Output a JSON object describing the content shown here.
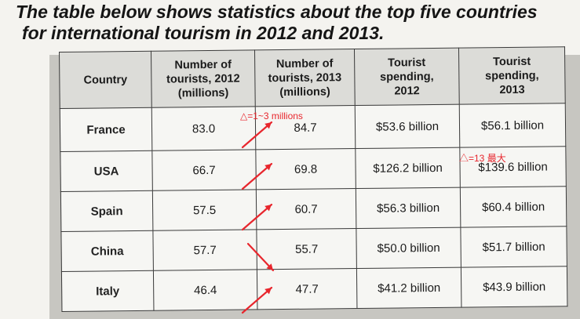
{
  "title": {
    "line1": "The table below shows statistics about the top five countries",
    "line2": "for international tourism in 2012 and 2013."
  },
  "table": {
    "headers": {
      "country": [
        "Country"
      ],
      "tourists_2012": [
        "Number of",
        "tourists, 2012",
        "(millions)"
      ],
      "tourists_2013": [
        "Number of",
        "tourists, 2013",
        "(millions)"
      ],
      "spending_2012": [
        "Tourist",
        "spending,",
        "2012"
      ],
      "spending_2013": [
        "Tourist",
        "spending,",
        "2013"
      ]
    },
    "rows": [
      {
        "country": "France",
        "tourists_2012": "83.0",
        "tourists_2013": "84.7",
        "spending_2012": "$53.6 billion",
        "spending_2013": "$56.1 billion"
      },
      {
        "country": "USA",
        "tourists_2012": "66.7",
        "tourists_2013": "69.8",
        "spending_2012": "$126.2 billion",
        "spending_2013": "$139.6 billion"
      },
      {
        "country": "Spain",
        "tourists_2012": "57.5",
        "tourists_2013": "60.7",
        "spending_2012": "$56.3 billion",
        "spending_2013": "$60.4 billion"
      },
      {
        "country": "China",
        "tourists_2012": "57.7",
        "tourists_2013": "55.7",
        "spending_2012": "$50.0 billion",
        "spending_2013": "$51.7 billion"
      },
      {
        "country": "Italy",
        "tourists_2012": "46.4",
        "tourists_2013": "47.7",
        "spending_2012": "$41.2 billion",
        "spending_2013": "$43.9 billion"
      }
    ]
  },
  "annotations": {
    "tourists_change": "△=1~3 millions",
    "spending_note": "△=13 最大",
    "color": "#e8262d",
    "trend_arrows": [
      "up",
      "up",
      "up",
      "down",
      "up"
    ]
  }
}
